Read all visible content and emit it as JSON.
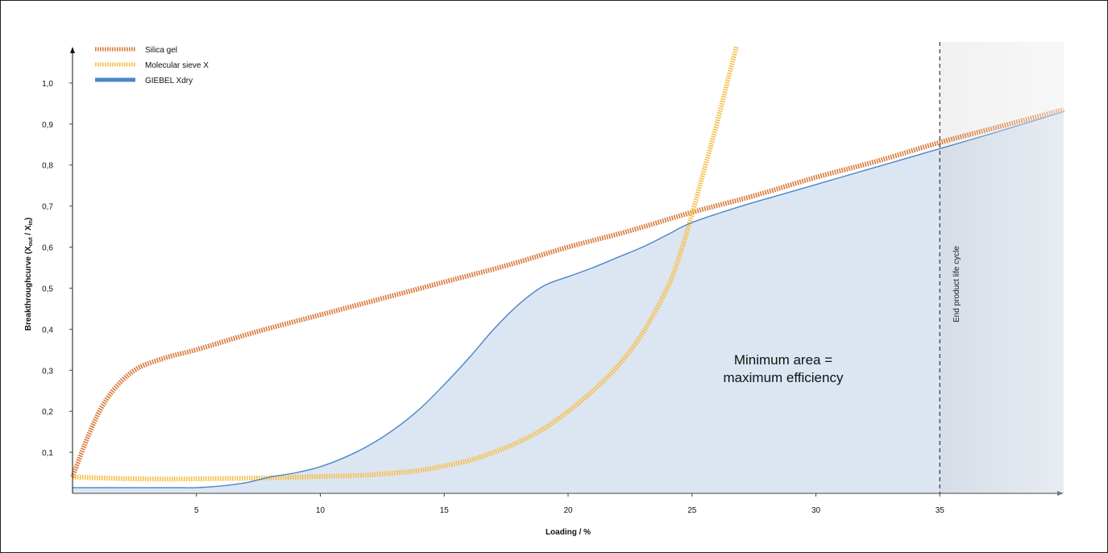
{
  "chart_data": {
    "type": "line",
    "xlabel": "Loading / %",
    "ylabel": "Breakthroughcurve (X",
    "ylabel_sub1": "out",
    "ylabel_mid": " / X",
    "ylabel_sub2": "in",
    "ylabel_end": ")",
    "xlim": [
      0,
      40
    ],
    "ylim": [
      0,
      1.1
    ],
    "x_ticks": [
      5,
      10,
      15,
      20,
      25,
      30,
      35
    ],
    "x_tick_labels": [
      "5",
      "10",
      "15",
      "20",
      "25",
      "30",
      "35"
    ],
    "y_ticks": [
      0.1,
      0.2,
      0.3,
      0.4,
      0.5,
      0.6,
      0.7,
      0.8,
      0.9,
      1.0
    ],
    "y_tick_labels": [
      "0,1",
      "0,2",
      "0,3",
      "0,4",
      "0,5",
      "0,6",
      "0,7",
      "0,8",
      "0,9",
      "1,0"
    ],
    "grid": false,
    "legend_position": "top-left",
    "series": [
      {
        "name": "Silica gel",
        "color": "#d97a3a",
        "style": "hatched",
        "x": [
          0,
          0.5,
          1,
          1.5,
          2,
          2.5,
          3,
          4,
          5,
          7.5,
          10,
          12.5,
          15,
          17.5,
          20,
          22.5,
          25,
          27.5,
          30,
          32.5,
          35,
          37.5,
          40
        ],
        "y": [
          0.04,
          0.12,
          0.19,
          0.24,
          0.275,
          0.3,
          0.315,
          0.335,
          0.35,
          0.395,
          0.435,
          0.475,
          0.515,
          0.555,
          0.6,
          0.64,
          0.685,
          0.725,
          0.77,
          0.81,
          0.855,
          0.895,
          0.935
        ]
      },
      {
        "name": "Molecular sieve X",
        "color": "#f7bf4a",
        "style": "hatched",
        "x": [
          0,
          2,
          4,
          6,
          8,
          10,
          12,
          14,
          15,
          16,
          17,
          18,
          19,
          20,
          21,
          22,
          23,
          24,
          24.5,
          25,
          25.5,
          26,
          26.5,
          26.8
        ],
        "y": [
          0.04,
          0.036,
          0.035,
          0.036,
          0.038,
          0.041,
          0.045,
          0.056,
          0.067,
          0.08,
          0.1,
          0.125,
          0.157,
          0.2,
          0.25,
          0.31,
          0.39,
          0.5,
          0.58,
          0.68,
          0.79,
          0.9,
          1.02,
          1.09
        ]
      },
      {
        "name": "GIEBEL Xdry",
        "color": "#4a86c8",
        "style": "solid",
        "x": [
          0,
          2,
          4,
          5,
          6,
          7,
          8,
          9,
          10,
          11,
          12,
          13,
          14,
          15,
          16,
          17,
          18,
          19,
          20,
          21,
          22,
          23,
          24,
          25,
          27,
          29,
          31,
          33,
          35,
          37,
          40
        ],
        "y": [
          0.014,
          0.014,
          0.014,
          0.014,
          0.018,
          0.026,
          0.04,
          0.05,
          0.065,
          0.088,
          0.118,
          0.157,
          0.205,
          0.265,
          0.33,
          0.4,
          0.46,
          0.505,
          0.528,
          0.55,
          0.575,
          0.6,
          0.63,
          0.66,
          0.7,
          0.735,
          0.77,
          0.805,
          0.84,
          0.875,
          0.93
        ]
      }
    ],
    "end_marker": {
      "x": 35,
      "label": "End product life cycle"
    },
    "annotation": {
      "line1": "Minimum area =",
      "line2": "maximum efficiency"
    }
  }
}
